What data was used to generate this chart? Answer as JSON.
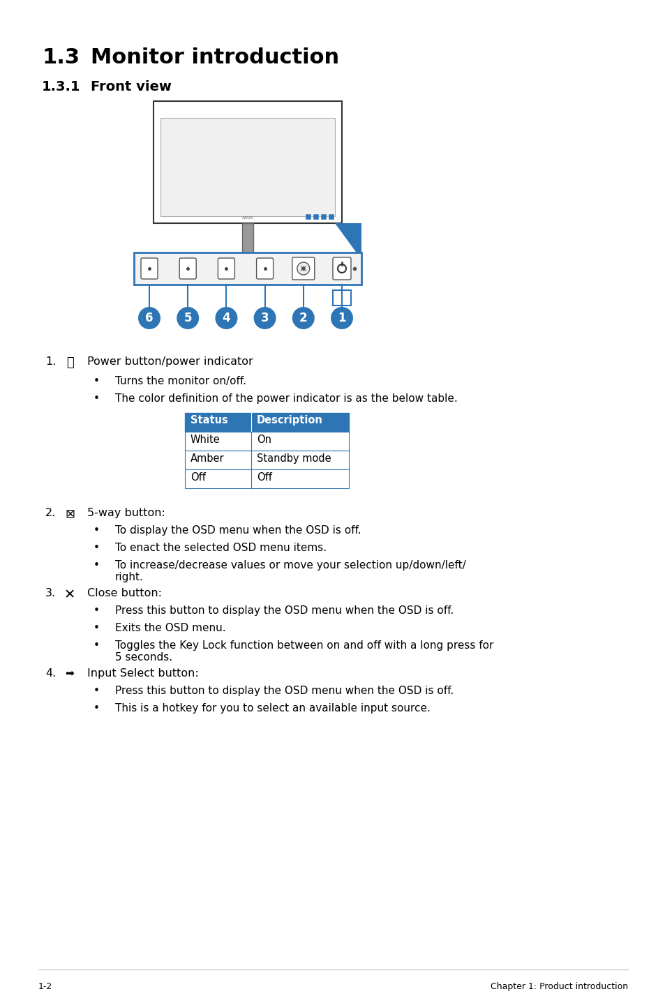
{
  "title_section": "1.3",
  "title_text": "Monitor introduction",
  "subtitle_section": "1.3.1",
  "subtitle_text": "Front view",
  "bg_color": "#ffffff",
  "blue_color": "#2e75b6",
  "text_color": "#000000",
  "header_blue": "#2e75b6",
  "table_header": [
    "Status",
    "Description"
  ],
  "table_rows": [
    [
      "White",
      "On"
    ],
    [
      "Amber",
      "Standby mode"
    ],
    [
      "Off",
      "Off"
    ]
  ],
  "item1_title": "Power button/power indicator",
  "item1_bullets": [
    "Turns the monitor on/off.",
    "The color definition of the power indicator is as the below table."
  ],
  "item2_title": "5-way button:",
  "item2_bullets": [
    "To display the OSD menu when the OSD is off.",
    "To enact the selected OSD menu items.",
    "To increase/decrease values or move your selection up/down/left/\nright."
  ],
  "item3_title": "Close button:",
  "item3_bullets": [
    "Press this button to display the OSD menu when the OSD is off.",
    "Exits the OSD menu.",
    "Toggles the Key Lock function between on and off with a long press for\n5 seconds."
  ],
  "item4_title": "Input Select button:",
  "item4_bullets": [
    "Press this button to display the OSD menu when the OSD is off.",
    "This is a hotkey for you to select an available input source."
  ],
  "footer_left": "1-2",
  "footer_right": "Chapter 1: Product introduction"
}
